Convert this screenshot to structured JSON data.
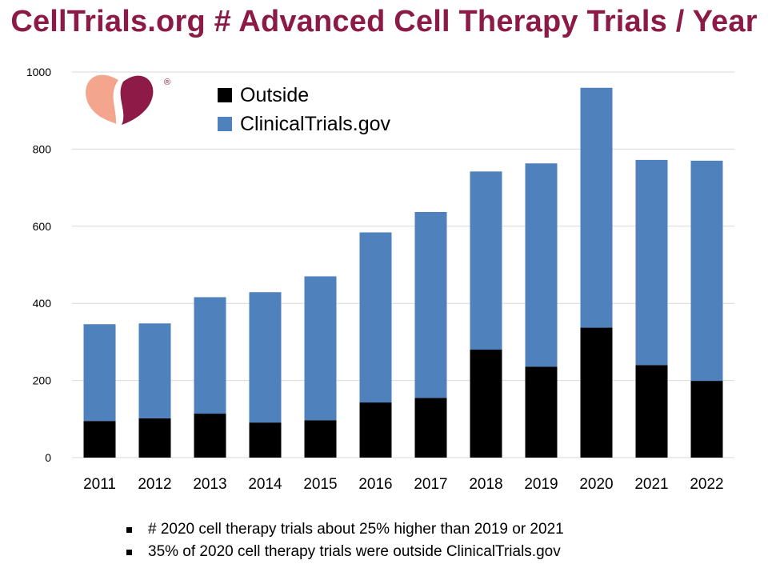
{
  "title": "CellTrials.org # Advanced Cell Therapy Trials / Year",
  "logo": {
    "registered_mark": "®",
    "colors": {
      "left": "#f4a58d",
      "right": "#8e1a47"
    }
  },
  "colors": {
    "title": "#8b1a47",
    "outside": "#000000",
    "clinicaltrials": "#4f81bd",
    "grid": "#d9d9d9"
  },
  "chart_data": {
    "type": "bar",
    "stacked": true,
    "title": "CellTrials.org # Advanced Cell Therapy Trials / Year",
    "xlabel": "",
    "ylabel": "",
    "categories": [
      "2011",
      "2012",
      "2013",
      "2014",
      "2015",
      "2016",
      "2017",
      "2018",
      "2019",
      "2020",
      "2021",
      "2022"
    ],
    "series": [
      {
        "name": "Outside",
        "color": "#000000",
        "values": [
          95,
          102,
          114,
          91,
          97,
          143,
          155,
          280,
          236,
          337,
          240,
          199
        ]
      },
      {
        "name": "ClinicalTrials.gov",
        "color": "#4f81bd",
        "values": [
          251,
          246,
          302,
          338,
          373,
          441,
          482,
          462,
          527,
          622,
          532,
          571
        ]
      }
    ],
    "ylim": [
      0,
      1000
    ],
    "yticks": [
      0,
      200,
      400,
      600,
      800,
      1000
    ],
    "grid": true,
    "legend_position": "top-left"
  },
  "notes": [
    "# 2020 cell therapy trials about 25% higher than 2019 or 2021",
    "35% of 2020 cell therapy trials were outside ClinicalTrials.gov"
  ]
}
